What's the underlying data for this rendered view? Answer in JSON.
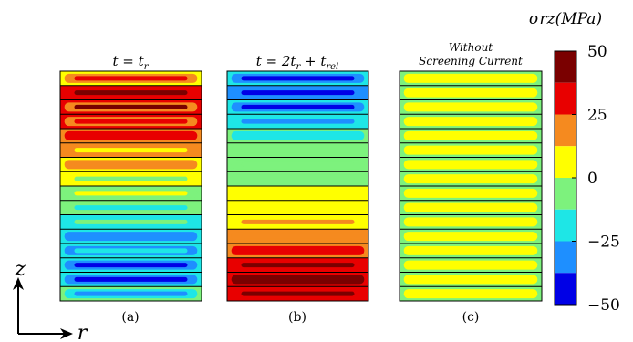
{
  "chart_data": {
    "type": "heatmap",
    "colorbar": {
      "title": "σrz(MPa)",
      "ticks": [
        "50",
        "25",
        "0",
        "−25",
        "−50"
      ],
      "levels": [
        {
          "range": [
            37.5,
            50
          ],
          "color": "#7a0000"
        },
        {
          "range": [
            25,
            37.5
          ],
          "color": "#e80000"
        },
        {
          "range": [
            12.5,
            25
          ],
          "color": "#f58a1f"
        },
        {
          "range": [
            0,
            12.5
          ],
          "color": "#ffff00"
        },
        {
          "range": [
            -12.5,
            0
          ],
          "color": "#7df27d"
        },
        {
          "range": [
            -25,
            -12.5
          ],
          "color": "#1ee6e6"
        },
        {
          "range": [
            -37.5,
            -25
          ],
          "color": "#1e8fff"
        },
        {
          "range": [
            -50,
            -37.5
          ],
          "color": "#0000e6"
        }
      ]
    },
    "axes": {
      "vertical": "z",
      "horizontal": "r"
    },
    "panels": [
      {
        "title_parts": [
          "t = t",
          "r"
        ],
        "caption": "(a)",
        "layers": [
          {
            "base": "#ffff00",
            "band": "#f58a1f",
            "streak": "#e80000"
          },
          {
            "base": "#e80000",
            "band": "#e80000",
            "streak": "#7a0000"
          },
          {
            "base": "#e80000",
            "band": "#f58a1f",
            "streak": "#7a0000"
          },
          {
            "base": "#e80000",
            "band": "#f58a1f",
            "streak": "#e80000"
          },
          {
            "base": "#f58a1f",
            "band": "#e80000",
            "streak": "#e80000"
          },
          {
            "base": "#f58a1f",
            "band": "#f58a1f",
            "streak": "#ffff00"
          },
          {
            "base": "#ffff00",
            "band": "#f58a1f",
            "streak": "#f58a1f"
          },
          {
            "base": "#ffff00",
            "band": "#ffff00",
            "streak": "#7df27d"
          },
          {
            "base": "#7df27d",
            "band": "#7df27d",
            "streak": "#ffff00"
          },
          {
            "base": "#7df27d",
            "band": "#7df27d",
            "streak": "#1ee6e6"
          },
          {
            "base": "#1ee6e6",
            "band": "#1ee6e6",
            "streak": "#7df27d"
          },
          {
            "base": "#1ee6e6",
            "band": "#1e8fff",
            "streak": "#1e8fff"
          },
          {
            "base": "#1ee6e6",
            "band": "#1e8fff",
            "streak": "#1ee6e6"
          },
          {
            "base": "#1ee6e6",
            "band": "#1e8fff",
            "streak": "#0000e6"
          },
          {
            "base": "#1ee6e6",
            "band": "#1e8fff",
            "streak": "#0000e6"
          },
          {
            "base": "#7df27d",
            "band": "#1ee6e6",
            "streak": "#1e8fff"
          }
        ]
      },
      {
        "title_parts": [
          "t = 2t",
          "r",
          " + t",
          "rel"
        ],
        "caption": "(b)",
        "layers": [
          {
            "base": "#1ee6e6",
            "band": "#1e8fff",
            "streak": "#0000e6"
          },
          {
            "base": "#1e8fff",
            "band": "#1e8fff",
            "streak": "#0000e6"
          },
          {
            "base": "#1ee6e6",
            "band": "#1e8fff",
            "streak": "#0000e6"
          },
          {
            "base": "#1ee6e6",
            "band": "#1ee6e6",
            "streak": "#1e8fff"
          },
          {
            "base": "#7df27d",
            "band": "#1ee6e6",
            "streak": "#1ee6e6"
          },
          {
            "base": "#7df27d",
            "band": "#7df27d",
            "streak": "#7df27d"
          },
          {
            "base": "#7df27d",
            "band": "#7df27d",
            "streak": "#7df27d"
          },
          {
            "base": "#7df27d",
            "band": "#7df27d",
            "streak": "#7df27d"
          },
          {
            "base": "#ffff00",
            "band": "#ffff00",
            "streak": "#ffff00"
          },
          {
            "base": "#ffff00",
            "band": "#ffff00",
            "streak": "#ffff00"
          },
          {
            "base": "#ffff00",
            "band": "#ffff00",
            "streak": "#f58a1f"
          },
          {
            "base": "#f58a1f",
            "band": "#f58a1f",
            "streak": "#f58a1f"
          },
          {
            "base": "#f58a1f",
            "band": "#e80000",
            "streak": "#e80000"
          },
          {
            "base": "#e80000",
            "band": "#e80000",
            "streak": "#7a0000"
          },
          {
            "base": "#e80000",
            "band": "#7a0000",
            "streak": "#7a0000"
          },
          {
            "base": "#e80000",
            "band": "#e80000",
            "streak": "#7a0000"
          }
        ]
      },
      {
        "title_lines": [
          "Without",
          "Screening Current"
        ],
        "caption": "(c)",
        "layers": [
          {
            "base": "#7df27d",
            "band": "#ffff00",
            "streak": "#ffff00"
          },
          {
            "base": "#7df27d",
            "band": "#ffff00",
            "streak": "#ffff00"
          },
          {
            "base": "#7df27d",
            "band": "#ffff00",
            "streak": "#ffff00"
          },
          {
            "base": "#7df27d",
            "band": "#ffff00",
            "streak": "#ffff00"
          },
          {
            "base": "#7df27d",
            "band": "#ffff00",
            "streak": "#ffff00"
          },
          {
            "base": "#7df27d",
            "band": "#ffff00",
            "streak": "#ffff00"
          },
          {
            "base": "#7df27d",
            "band": "#ffff00",
            "streak": "#ffff00"
          },
          {
            "base": "#7df27d",
            "band": "#ffff00",
            "streak": "#ffff00"
          },
          {
            "base": "#7df27d",
            "band": "#ffff00",
            "streak": "#ffff00"
          },
          {
            "base": "#7df27d",
            "band": "#ffff00",
            "streak": "#ffff00"
          },
          {
            "base": "#7df27d",
            "band": "#ffff00",
            "streak": "#ffff00"
          },
          {
            "base": "#7df27d",
            "band": "#ffff00",
            "streak": "#ffff00"
          },
          {
            "base": "#7df27d",
            "band": "#ffff00",
            "streak": "#ffff00"
          },
          {
            "base": "#7df27d",
            "band": "#ffff00",
            "streak": "#ffff00"
          },
          {
            "base": "#7df27d",
            "band": "#ffff00",
            "streak": "#ffff00"
          },
          {
            "base": "#7df27d",
            "band": "#ffff00",
            "streak": "#ffff00"
          }
        ]
      }
    ]
  }
}
